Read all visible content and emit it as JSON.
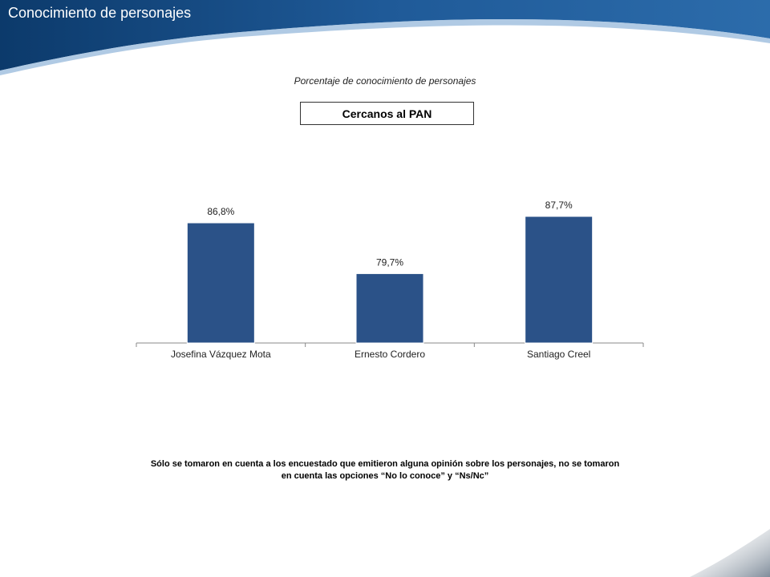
{
  "header": {
    "title": "Conocimiento de personajes",
    "colors": {
      "dark": "#0e3f73",
      "light": "#2e6fb0"
    }
  },
  "subtitle": "Porcentaje de conocimiento de personajes",
  "group_label": "Cercanos al PAN",
  "chart_data": {
    "type": "bar",
    "categories": [
      "Josefina Vázquez Mota",
      "Ernesto Cordero",
      "Santiago Creel"
    ],
    "values": [
      86.8,
      79.7,
      87.7
    ],
    "value_labels": [
      "86,8%",
      "79,7%",
      "87,7%"
    ],
    "ylim": [
      70,
      90
    ],
    "bar_color": "#2b5288",
    "grid": false
  },
  "footnote": {
    "line1": "Sólo se tomaron en cuenta a los encuestado  que emitieron alguna opinión sobre los personajes, no se tomaron",
    "line2": "en cuenta las opciones “No lo conoce”  y “Ns/Nc”"
  }
}
